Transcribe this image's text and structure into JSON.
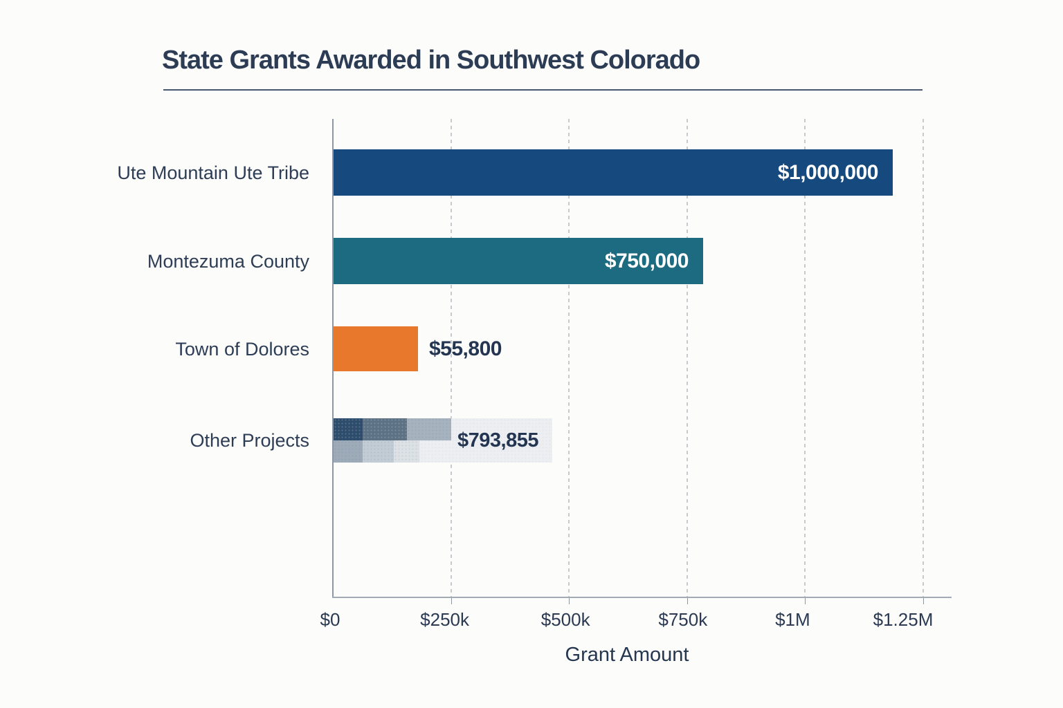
{
  "chart_data": {
    "type": "bar",
    "orientation": "horizontal",
    "title": "State Grants Awarded in Southwest Colorado",
    "xlabel": "Grant Amount",
    "categories": [
      "Ute Mountain Ute Tribe",
      "Montezuma County",
      "Town of Dolores",
      "Other Projects"
    ],
    "values": [
      1000000,
      750000,
      55800,
      793855
    ],
    "value_labels": [
      "$1,000,000",
      "$750,000",
      "$55,800",
      "$793,855"
    ],
    "xlim": [
      0,
      1250000
    ],
    "grid": {
      "vertical_dashed": true,
      "color": "#c6cacf"
    },
    "x_ticks": [
      {
        "label": "$0",
        "value": 0
      },
      {
        "label": "$250k",
        "value": 250000
      },
      {
        "label": "$500k",
        "value": 500000
      },
      {
        "label": "$750k",
        "value": 750000
      },
      {
        "label": "$1M",
        "value": 1000000
      },
      {
        "label": "$1.25M",
        "value": 1250000
      }
    ],
    "bars": [
      {
        "category": "Ute Mountain Ute Tribe",
        "value": 1000000,
        "value_label": "$1,000,000",
        "color": "#16497e",
        "display_frac": 0.947,
        "value_label_placement": "inside",
        "value_label_color": "#ffffff"
      },
      {
        "category": "Montezuma County",
        "value": 750000,
        "value_label": "$750,000",
        "color": "#1d6b80",
        "display_frac": 0.626,
        "value_label_placement": "inside",
        "value_label_color": "#ffffff"
      },
      {
        "category": "Town of Dolores",
        "value": 55800,
        "value_label": "$55,800",
        "color": "#e8792c",
        "display_frac": 0.143,
        "value_label_placement": "outside",
        "value_label_color": "#233550"
      },
      {
        "category": "Other Projects",
        "value": 793855,
        "value_label": "$793,855",
        "color": "mosaic",
        "display_frac": 0.37,
        "value_label_placement": "inside",
        "value_label_color": "#233550"
      }
    ],
    "mosaic": {
      "base": "#eceef1",
      "rows": [
        [
          {
            "color": "#2e4d6d",
            "w": 42
          },
          {
            "color": "#5d7285",
            "w": 64
          },
          {
            "color": "#a6b3bf",
            "w": 64
          }
        ],
        [
          {
            "color": "#9dabb9",
            "w": 42
          },
          {
            "color": "#c2ccd4",
            "w": 45
          },
          {
            "color": "#dce1e6",
            "w": 37
          }
        ]
      ]
    },
    "colors": {
      "title": "#2c3c54",
      "category_labels": "#2d3d56",
      "axis": "#8d97a3",
      "value_text_dark": "#233550",
      "value_text_light": "#ffffff"
    }
  }
}
